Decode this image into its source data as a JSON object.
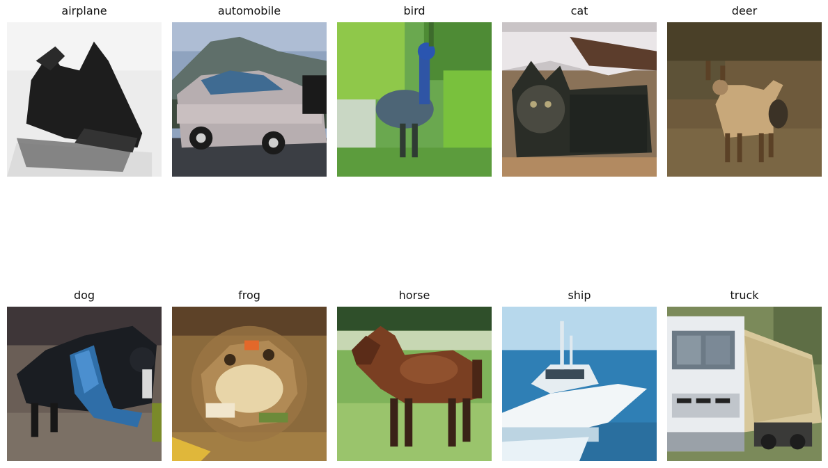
{
  "panels": [
    {
      "label": "airplane"
    },
    {
      "label": "automobile"
    },
    {
      "label": "bird"
    },
    {
      "label": "cat"
    },
    {
      "label": "deer"
    },
    {
      "label": "dog"
    },
    {
      "label": "frog"
    },
    {
      "label": "horse"
    },
    {
      "label": "ship"
    },
    {
      "label": "truck"
    }
  ]
}
